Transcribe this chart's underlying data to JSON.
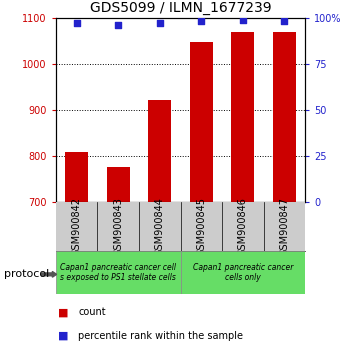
{
  "title": "GDS5099 / ILMN_1677239",
  "categories": [
    "GSM900842",
    "GSM900843",
    "GSM900844",
    "GSM900845",
    "GSM900846",
    "GSM900847"
  ],
  "bar_values": [
    808,
    775,
    921,
    1047,
    1068,
    1068
  ],
  "percentile_values": [
    97,
    96,
    97,
    98,
    99,
    98
  ],
  "ylim_left": [
    700,
    1100
  ],
  "ylim_right": [
    0,
    100
  ],
  "yticks_left": [
    700,
    800,
    900,
    1000,
    1100
  ],
  "yticks_right": [
    0,
    25,
    50,
    75,
    100
  ],
  "bar_color": "#cc0000",
  "dot_color": "#2222cc",
  "grid_color": "#000000",
  "plot_bg": "#ffffff",
  "xtick_bg": "#cccccc",
  "left_tick_color": "#cc0000",
  "right_tick_color": "#2222cc",
  "protocol_group1_label": "Capan1 pancreatic cancer cell\ns exposed to PS1 stellate cells",
  "protocol_group2_label": "Capan1 pancreatic cancer\ncells only",
  "protocol_color": "#66dd66",
  "protocol_label": "protocol",
  "legend_count_label": "count",
  "legend_pct_label": "percentile rank within the sample",
  "bar_width": 0.55,
  "title_fontsize": 10,
  "tick_fontsize": 7,
  "label_fontsize": 7,
  "proto_fontsize": 5.5,
  "legend_fontsize": 7
}
